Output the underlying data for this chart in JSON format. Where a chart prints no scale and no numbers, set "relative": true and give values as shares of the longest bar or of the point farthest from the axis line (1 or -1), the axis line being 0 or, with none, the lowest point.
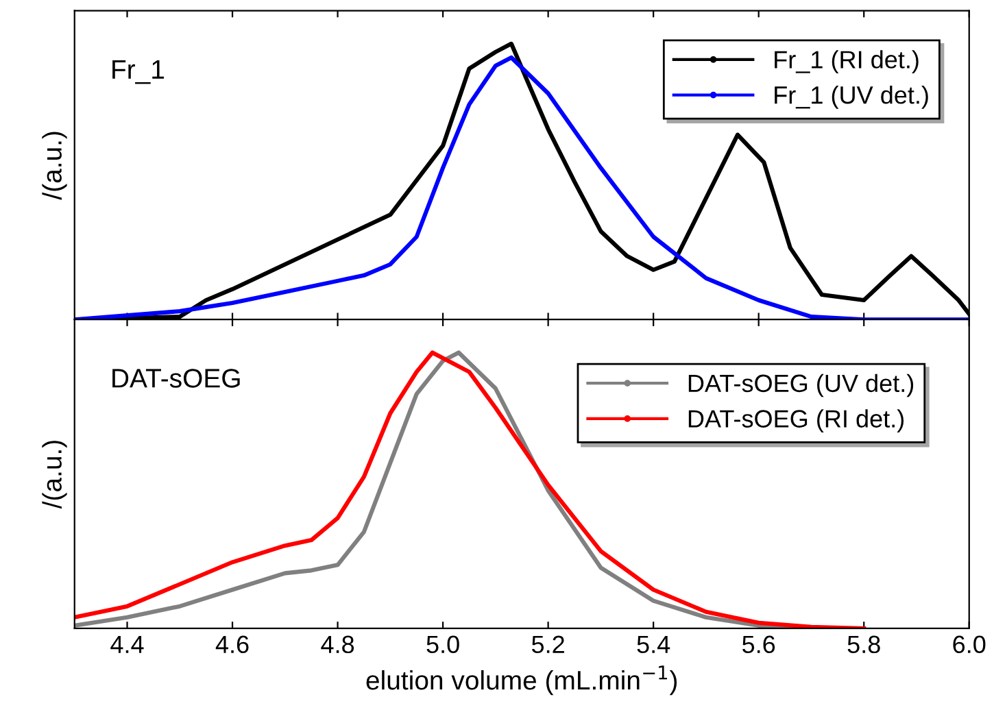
{
  "chart_data": [
    {
      "type": "line",
      "relative": true,
      "ylabel": "/(a.u.)",
      "annotations": [
        "Fr_1"
      ],
      "xlim": [
        4.3,
        6.0
      ],
      "xticks": [
        {
          "value": 4.4,
          "label": null
        },
        {
          "value": 4.6,
          "label": null
        },
        {
          "value": 4.8,
          "label": null
        },
        {
          "value": 5.0,
          "label": null
        },
        {
          "value": 5.2,
          "label": null
        },
        {
          "value": 5.4,
          "label": null
        },
        {
          "value": 5.6,
          "label": null
        },
        {
          "value": 5.8,
          "label": null
        },
        {
          "value": 6.0,
          "label": null
        }
      ],
      "tick_labels": false,
      "legend": "top right",
      "grid": false,
      "series": [
        {
          "name": "Fr_1 (RI det.)",
          "color": "#000000",
          "x": [
            4.3,
            4.5,
            4.55,
            4.6,
            4.7,
            4.8,
            4.9,
            5.0,
            5.05,
            5.1,
            5.13,
            5.2,
            5.25,
            5.3,
            5.35,
            5.4,
            5.44,
            5.5,
            5.56,
            5.61,
            5.66,
            5.72,
            5.8,
            5.85,
            5.89,
            5.93,
            5.98,
            6.0
          ],
          "values": [
            0,
            0.01,
            0.07,
            0.11,
            0.2,
            0.29,
            0.38,
            0.63,
            0.91,
            0.97,
            1,
            0.69,
            0.5,
            0.32,
            0.23,
            0.18,
            0.21,
            0.44,
            0.67,
            0.57,
            0.26,
            0.09,
            0.07,
            0.16,
            0.23,
            0.16,
            0.07,
            0.02
          ]
        },
        {
          "name": "Fr_1 (UV det.)",
          "color": "#0000ff",
          "x": [
            4.3,
            4.5,
            4.6,
            4.7,
            4.8,
            4.85,
            4.9,
            4.95,
            5.0,
            5.05,
            5.1,
            5.13,
            5.2,
            5.3,
            5.4,
            5.5,
            5.6,
            5.7,
            5.8,
            6.0
          ],
          "values": [
            0,
            0.03,
            0.06,
            0.1,
            0.14,
            0.16,
            0.2,
            0.3,
            0.55,
            0.78,
            0.92,
            0.95,
            0.82,
            0.55,
            0.3,
            0.15,
            0.07,
            0.01,
            0,
            0
          ]
        }
      ]
    },
    {
      "type": "line",
      "relative": true,
      "ylabel": "/(a.u.)",
      "xlabel": "elution volume (mL.min$^{−1}$)",
      "annotations": [
        "DAT-sOEG"
      ],
      "xlim": [
        4.3,
        6.0
      ],
      "xticks": [
        4.4,
        4.6,
        4.8,
        {
          "value": 5,
          "label": "5.0"
        },
        5.2,
        5.4,
        5.6,
        5.8,
        {
          "value": 6,
          "label": "6.0"
        }
      ],
      "tick_labels": "x",
      "legend": "top right",
      "grid": false,
      "series": [
        {
          "name": "DAT-sOEG (UV det.)",
          "color": "#808080",
          "x": [
            4.3,
            4.4,
            4.5,
            4.6,
            4.7,
            4.75,
            4.8,
            4.85,
            4.9,
            4.95,
            5.0,
            5.03,
            5.1,
            5.2,
            5.3,
            5.4,
            5.5,
            5.6,
            5.7
          ],
          "values": [
            0.01,
            0.04,
            0.08,
            0.14,
            0.2,
            0.21,
            0.23,
            0.35,
            0.6,
            0.85,
            0.97,
            1,
            0.87,
            0.5,
            0.22,
            0.1,
            0.04,
            0.01,
            0
          ]
        },
        {
          "name": "DAT-sOEG (RI det.)",
          "color": "#ff0000",
          "x": [
            4.3,
            4.4,
            4.5,
            4.6,
            4.7,
            4.75,
            4.8,
            4.85,
            4.9,
            4.95,
            4.98,
            5.05,
            5.1,
            5.2,
            5.3,
            5.4,
            5.5,
            5.6,
            5.7,
            5.8
          ],
          "values": [
            0.04,
            0.08,
            0.16,
            0.24,
            0.3,
            0.32,
            0.4,
            0.55,
            0.78,
            0.93,
            1,
            0.93,
            0.8,
            0.52,
            0.28,
            0.14,
            0.06,
            0.02,
            0.005,
            0
          ]
        }
      ]
    }
  ]
}
